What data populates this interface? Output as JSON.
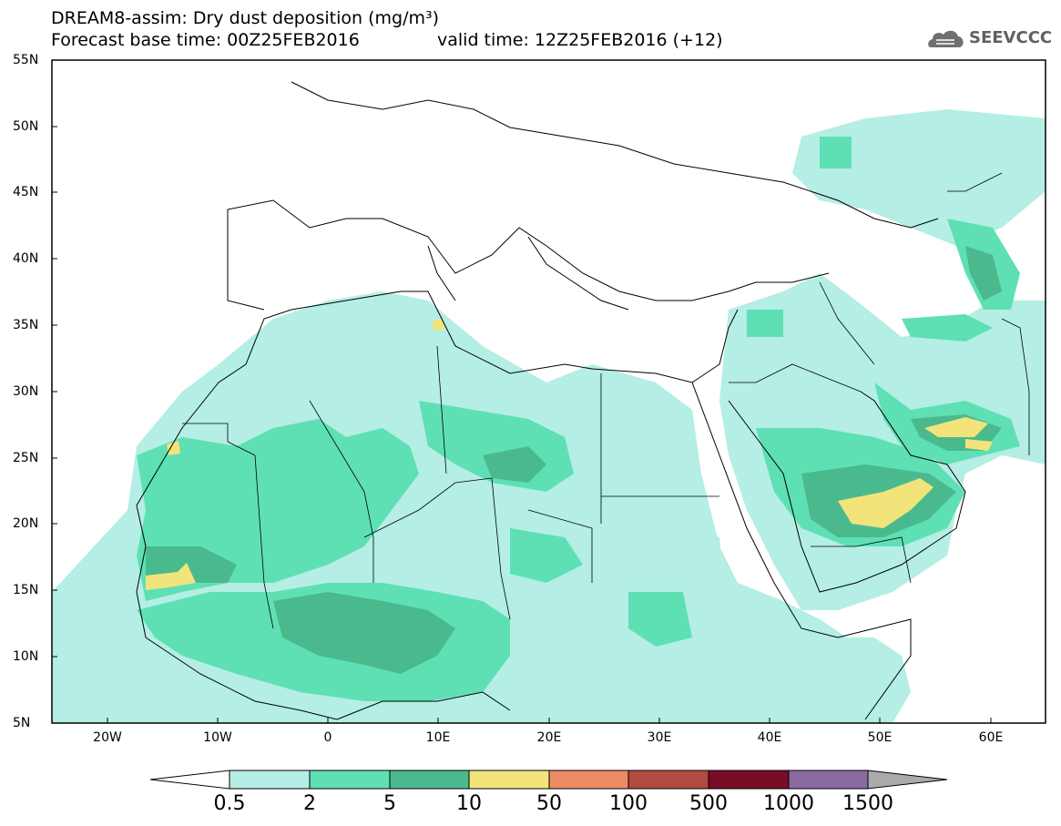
{
  "title": {
    "line1": "DREAM8-assim: Dry dust deposition (mg/m³)",
    "line2_base": "Forecast base time: 00Z25FEB2016",
    "line2_valid": "valid time: 12Z25FEB2016 (+12)"
  },
  "logo": {
    "text": "SEEVCCC",
    "icon": "cloud-icon"
  },
  "axes": {
    "lat_labels": [
      "55N",
      "50N",
      "45N",
      "40N",
      "35N",
      "30N",
      "25N",
      "20N",
      "15N",
      "10N",
      "5N"
    ],
    "lon_labels": [
      "20W",
      "10W",
      "0",
      "10E",
      "20E",
      "30E",
      "40E",
      "50E",
      "60E"
    ],
    "lat_range": [
      5,
      55
    ],
    "lon_range": [
      -25,
      65
    ]
  },
  "legend": {
    "labels": [
      "0.5",
      "2",
      "5",
      "10",
      "50",
      "100",
      "500",
      "1000",
      "1500"
    ],
    "colors": [
      "#b4eee4",
      "#5ee0b4",
      "#4aba8e",
      "#f2e47a",
      "#ec8c64",
      "#b04c40",
      "#7a0c28",
      "#8a6aa0",
      "#aaaaaa"
    ]
  },
  "fields": {
    "light_color": "#b4eee4",
    "mid_color": "#5ee0b4",
    "dark_color": "#4aba8e",
    "yellow_color": "#f2e47a"
  }
}
